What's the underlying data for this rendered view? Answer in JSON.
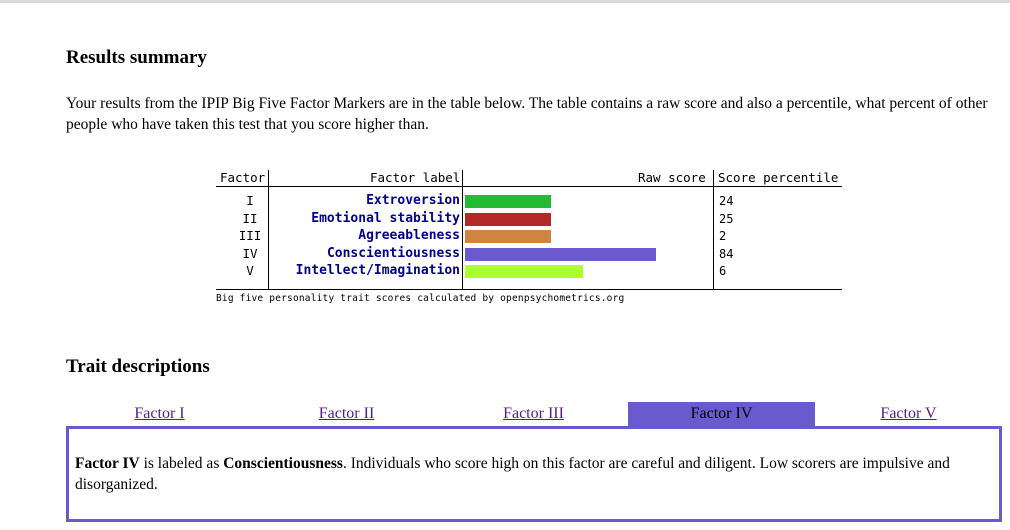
{
  "results": {
    "heading": "Results summary",
    "intro": "Your results from the IPIP Big Five Factor Markers are in the table below. The table contains a raw score and also a percentile, what percent of other people who have taken this test that you score higher than."
  },
  "chart_data": {
    "type": "bar",
    "headers": {
      "factor": "Factor",
      "label": "Factor label",
      "raw": "Raw score",
      "percentile": "Score percentile"
    },
    "rows": [
      {
        "roman": "I",
        "label": "Extroversion",
        "raw_bar": 0.35,
        "percentile": "24",
        "color": "#22bb33"
      },
      {
        "roman": "II",
        "label": "Emotional stability",
        "raw_bar": 0.35,
        "percentile": "25",
        "color": "#b22a2a"
      },
      {
        "roman": "III",
        "label": "Agreeableness",
        "raw_bar": 0.35,
        "percentile": "2",
        "color": "#cd853f"
      },
      {
        "roman": "IV",
        "label": "Conscientiousness",
        "raw_bar": 0.78,
        "percentile": "84",
        "color": "#6a5acd"
      },
      {
        "roman": "V",
        "label": "Intellect/Imagination",
        "raw_bar": 0.48,
        "percentile": "6",
        "color": "#adff2f"
      }
    ],
    "caption": "Big five personality trait scores calculated by openpsychometrics.org"
  },
  "traits": {
    "heading": "Trait descriptions",
    "tabs": [
      "Factor I",
      "Factor II",
      "Factor III",
      "Factor IV",
      "Factor V"
    ],
    "active_tab": 3,
    "active_color": "#6a5acd",
    "description": {
      "factor": "Factor IV",
      "mid": " is labeled as ",
      "trait": "Conscientiousness",
      "rest": ". Individuals who score high on this factor are careful and diligent. Low scorers are impulsive and disorganized."
    }
  }
}
